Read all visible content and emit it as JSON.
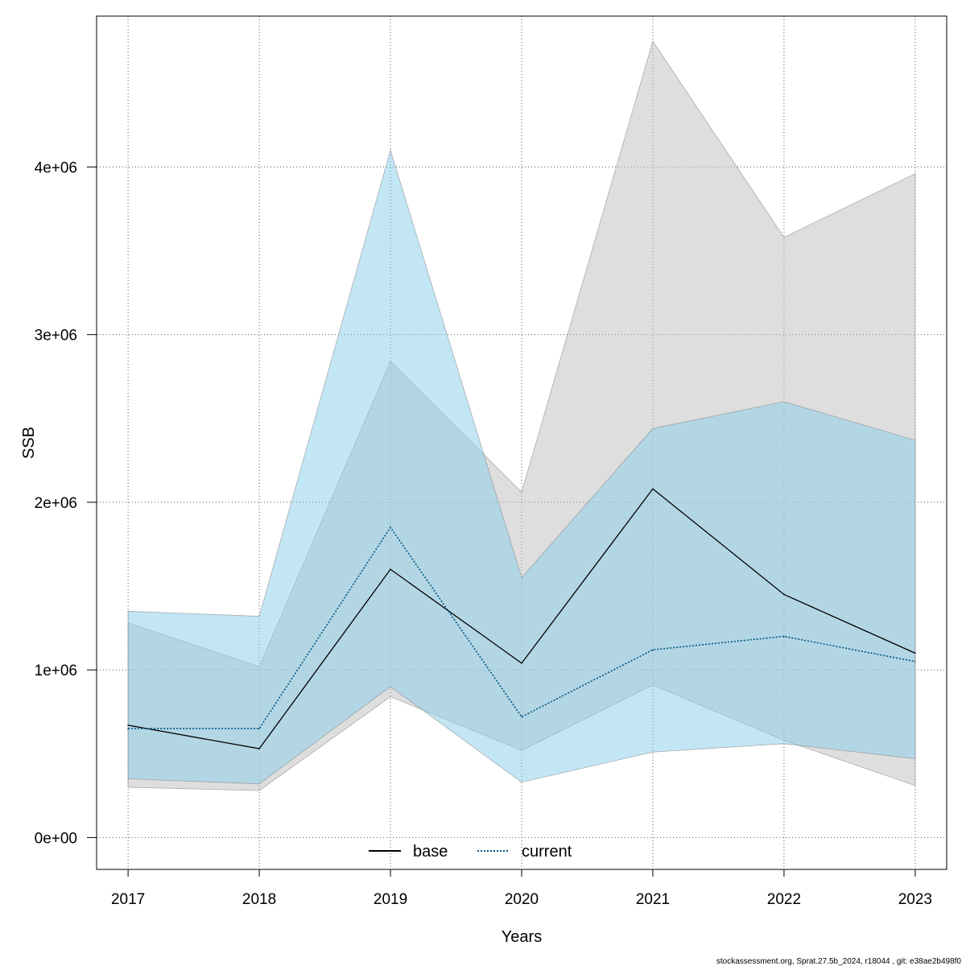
{
  "chart_data": {
    "type": "area",
    "xlabel": "Years",
    "ylabel": "SSB",
    "x": [
      2017,
      2018,
      2019,
      2020,
      2021,
      2022,
      2023
    ],
    "xlim": [
      2016.76,
      2023.24
    ],
    "ylim": [
      -190000,
      4900000
    ],
    "y_ticks": [
      0,
      1000000,
      2000000,
      3000000,
      4000000
    ],
    "y_tick_labels": [
      "0e+00",
      "1e+06",
      "2e+06",
      "3e+06",
      "4e+06"
    ],
    "x_tick_labels": [
      "2017",
      "2018",
      "2019",
      "2020",
      "2021",
      "2022",
      "2023"
    ],
    "grid": true,
    "legend_position": "bottom",
    "series": [
      {
        "name": "base",
        "line_style": "solid",
        "line_color": "#000000",
        "band_color": "#bebebe",
        "values": [
          670000,
          530000,
          1600000,
          1040000,
          2080000,
          1450000,
          1100000
        ],
        "lower": [
          300000,
          280000,
          840000,
          520000,
          910000,
          580000,
          310000
        ],
        "upper": [
          1280000,
          1020000,
          2840000,
          2060000,
          4750000,
          3580000,
          3960000
        ]
      },
      {
        "name": "current",
        "line_style": "dotted",
        "line_color": "#00557f",
        "band_color": "#87ceeb",
        "values": [
          650000,
          650000,
          1850000,
          720000,
          1120000,
          1200000,
          1050000
        ],
        "lower": [
          350000,
          320000,
          900000,
          330000,
          510000,
          560000,
          470000
        ],
        "upper": [
          1350000,
          1320000,
          4100000,
          1550000,
          2440000,
          2600000,
          2370000
        ]
      }
    ]
  },
  "footer": "stockassessment.org, Sprat.27.5b_2024, r18044 , git: e38ae2b498f0"
}
